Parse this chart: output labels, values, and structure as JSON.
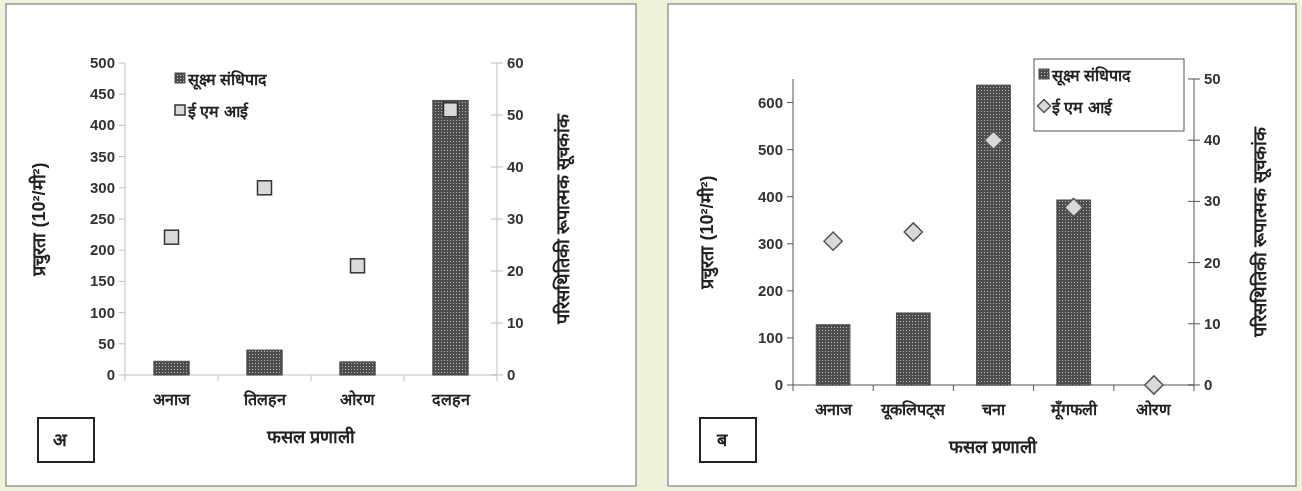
{
  "chart_data": [
    {
      "type": "bar",
      "categories": [
        "अनाज",
        "तिलहन",
        "ओरण",
        "दलहन"
      ],
      "xlabel": "फसल  प्रणाली",
      "ylabel": "प्रचुरता (10²/मी²)",
      "y2label": "परिसथितिकी रूपात्मक सूचकांक",
      "series": [
        {
          "name": "सूक्ष्म संधिपाद",
          "type": "bar",
          "color": "#4d4d4d",
          "values": [
            22,
            40,
            21,
            440
          ]
        },
        {
          "name": "ई एम आई",
          "type": "scatter",
          "axis": "y2",
          "marker": "square",
          "color": "#d9d9d9",
          "values": [
            26.5,
            36,
            21,
            51
          ]
        }
      ],
      "ylim": [
        0,
        500
      ],
      "yticks": [
        0,
        50,
        100,
        150,
        200,
        250,
        300,
        350,
        400,
        450,
        500
      ],
      "y2lim": [
        0,
        60
      ],
      "y2ticks": [
        0,
        10,
        20,
        30,
        40,
        50,
        60
      ],
      "legend": "top left",
      "grid": false,
      "annotations": [
        "अ"
      ]
    },
    {
      "type": "bar",
      "categories": [
        "अनाज",
        "यूकलिपट्स",
        "चना",
        "मूँगफली",
        "ओरण"
      ],
      "xlabel": "फसल प्रणाली",
      "ylabel": "प्रचुरता (10²/मी²)",
      "y2label": "परिसथितिकी रूपात्मक सूचकांक",
      "series": [
        {
          "name": "सूक्ष्म संधिपाद",
          "type": "bar",
          "color": "#4d4d4d",
          "values": [
            128,
            153,
            637,
            393,
            null
          ]
        },
        {
          "name": "ई एम आई",
          "type": "scatter",
          "axis": "y2",
          "marker": "diamond",
          "color": "#d9d9d9",
          "values": [
            23.5,
            25,
            40,
            29,
            0
          ]
        }
      ],
      "ylim": [
        0,
        650
      ],
      "yticks": [
        0,
        100,
        200,
        300,
        400,
        500,
        600
      ],
      "y2lim": [
        0,
        50
      ],
      "y2ticks": [
        0,
        10,
        20,
        30,
        40,
        50
      ],
      "legend": "top right",
      "grid": false,
      "annotations": [
        "ब"
      ]
    }
  ]
}
